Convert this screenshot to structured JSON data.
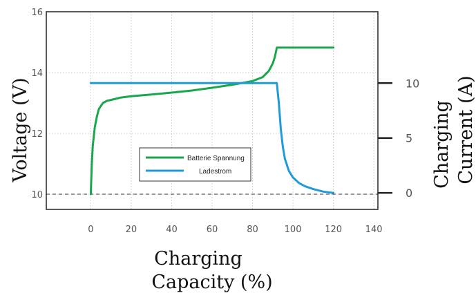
{
  "chart_data": {
    "type": "line",
    "xlabel_lines": [
      "Charging",
      "Capacity (%)"
    ],
    "ylabel": "Voltage (V)",
    "y2label_lines": [
      "Charging",
      "Current (A)"
    ],
    "xlim": [
      -22,
      142
    ],
    "ylim": [
      9.5,
      16
    ],
    "y2lim": [
      -1.5,
      16.5
    ],
    "xticks": [
      0,
      20,
      40,
      60,
      80,
      100,
      120,
      140
    ],
    "yticks": [
      10,
      12,
      14,
      16
    ],
    "y2ticks": [
      0,
      5,
      10
    ],
    "grid": true,
    "reference_line_y": 10,
    "legend_position": "center",
    "series": [
      {
        "name": "Batterie Spannung",
        "axis": "left",
        "color": "#1aa64b",
        "x": [
          0,
          0.5,
          1,
          2,
          3,
          4,
          6,
          8,
          10,
          15,
          20,
          30,
          40,
          50,
          60,
          70,
          80,
          85,
          88,
          90,
          91,
          92,
          93,
          95,
          100,
          105,
          110,
          115,
          120
        ],
        "y": [
          10.0,
          11.0,
          11.6,
          12.2,
          12.55,
          12.8,
          13.0,
          13.07,
          13.1,
          13.18,
          13.22,
          13.28,
          13.34,
          13.41,
          13.5,
          13.6,
          13.72,
          13.85,
          14.05,
          14.3,
          14.5,
          14.82,
          14.82,
          14.82,
          14.82,
          14.82,
          14.82,
          14.82,
          14.82
        ]
      },
      {
        "name": "Ladestrom",
        "axis": "right",
        "color": "#1f9bd7",
        "x": [
          0,
          20,
          40,
          60,
          80,
          92,
          93,
          94,
          95,
          96,
          98,
          100,
          103,
          106,
          110,
          115,
          120
        ],
        "y": [
          10,
          10,
          10,
          10,
          10,
          10,
          8.2,
          5.8,
          4.2,
          3.1,
          2.0,
          1.4,
          0.9,
          0.6,
          0.35,
          0.12,
          0.0
        ]
      }
    ]
  }
}
